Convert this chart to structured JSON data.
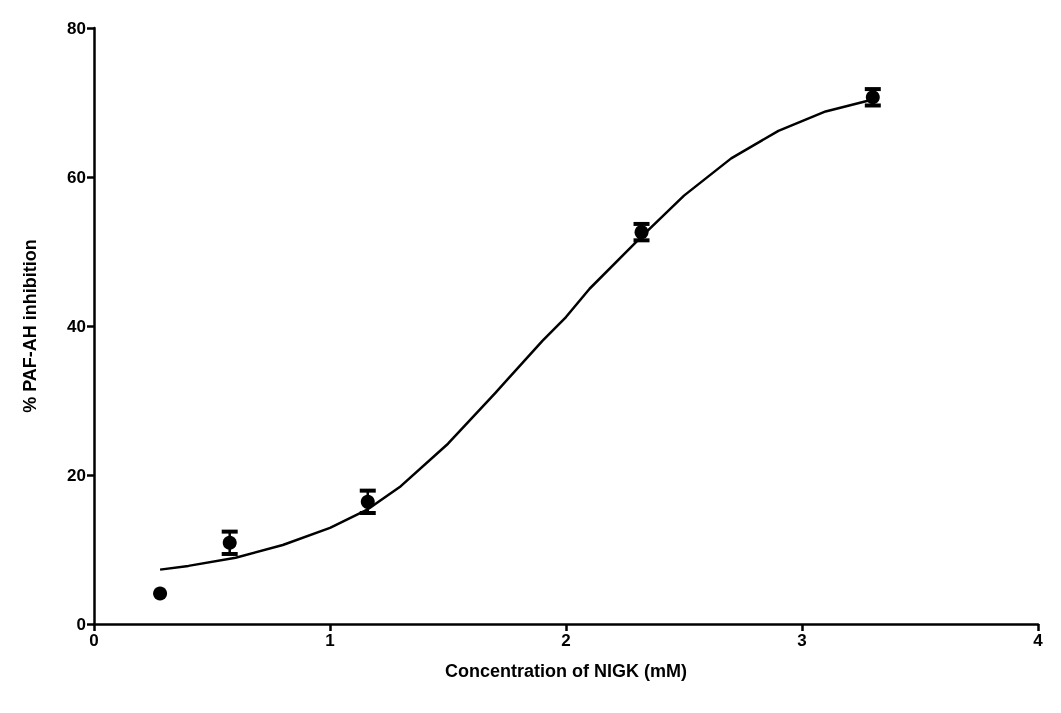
{
  "chart_data": {
    "type": "scatter",
    "xlabel": "Concentration of NIGK (mM)",
    "ylabel": "% PAF-AH inhibition",
    "xlim": [
      0,
      4
    ],
    "xticks": [
      0,
      1,
      2,
      3,
      4
    ],
    "ylim": [
      0,
      80
    ],
    "yticks": [
      0,
      20,
      40,
      60,
      80
    ],
    "grid": false,
    "marker": "circle",
    "series": [
      {
        "color": "#000000",
        "x": [
          0.28,
          0.575,
          1.16,
          2.32,
          3.3
        ],
        "values": [
          4.1,
          10.9,
          16.4,
          52.6,
          70.7
        ],
        "errors": [
          null,
          1.5,
          1.5,
          1.1,
          1.1
        ]
      },
      {
        "type": "line",
        "color": "#000000",
        "marker": "none",
        "line_style": "solid",
        "x": [
          0.28,
          0.4,
          0.6,
          0.8,
          1.0,
          1.16,
          1.3,
          1.5,
          1.7,
          1.9,
          2.0,
          2.1,
          2.32,
          2.5,
          2.7,
          2.9,
          3.1,
          3.3
        ],
        "values": [
          7.3,
          7.8,
          8.9,
          10.6,
          12.9,
          15.4,
          18.5,
          24.2,
          31.0,
          38.0,
          41.2,
          45.0,
          52.0,
          57.5,
          62.5,
          66.2,
          68.8,
          70.4
        ]
      }
    ]
  }
}
